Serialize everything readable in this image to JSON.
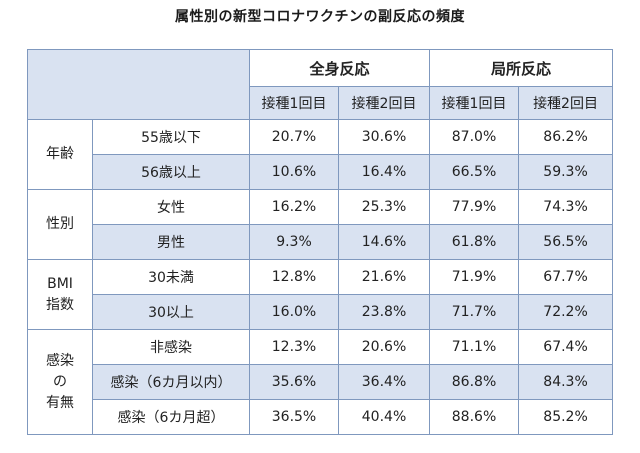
{
  "title": "属性別の新型コロナワクチンの副反応の頻度",
  "headers": {
    "group_whole": "全身反応",
    "group_local": "局所反応",
    "sub": [
      "接種1回目",
      "接種2回目",
      "接種1回目",
      "接種2回目"
    ]
  },
  "groups": [
    {
      "label_lines": [
        "年齢"
      ],
      "rows": [
        {
          "label": "55歳以下",
          "values": [
            "20.7%",
            "30.6%",
            "87.0%",
            "86.2%"
          ]
        },
        {
          "label": "56歳以上",
          "values": [
            "10.6%",
            "16.4%",
            "66.5%",
            "59.3%"
          ]
        }
      ]
    },
    {
      "label_lines": [
        "性別"
      ],
      "rows": [
        {
          "label": "女性",
          "values": [
            "16.2%",
            "25.3%",
            "77.9%",
            "74.3%"
          ]
        },
        {
          "label": "男性",
          "values": [
            "9.3%",
            "14.6%",
            "61.8%",
            "56.5%"
          ]
        }
      ]
    },
    {
      "label_lines": [
        "BMI",
        "指数"
      ],
      "rows": [
        {
          "label": "30未満",
          "values": [
            "12.8%",
            "21.6%",
            "71.9%",
            "67.7%"
          ]
        },
        {
          "label": "30以上",
          "values": [
            "16.0%",
            "23.8%",
            "71.7%",
            "72.2%"
          ]
        }
      ]
    },
    {
      "label_lines": [
        "感染",
        "の",
        "有無"
      ],
      "rows": [
        {
          "label": "非感染",
          "values": [
            "12.3%",
            "20.6%",
            "71.1%",
            "67.4%"
          ]
        },
        {
          "label": "感染（6カ月以内）",
          "values": [
            "35.6%",
            "36.4%",
            "86.8%",
            "84.3%"
          ]
        },
        {
          "label": "感染（6カ月超）",
          "values": [
            "36.5%",
            "40.4%",
            "88.6%",
            "85.2%"
          ]
        }
      ]
    }
  ]
}
